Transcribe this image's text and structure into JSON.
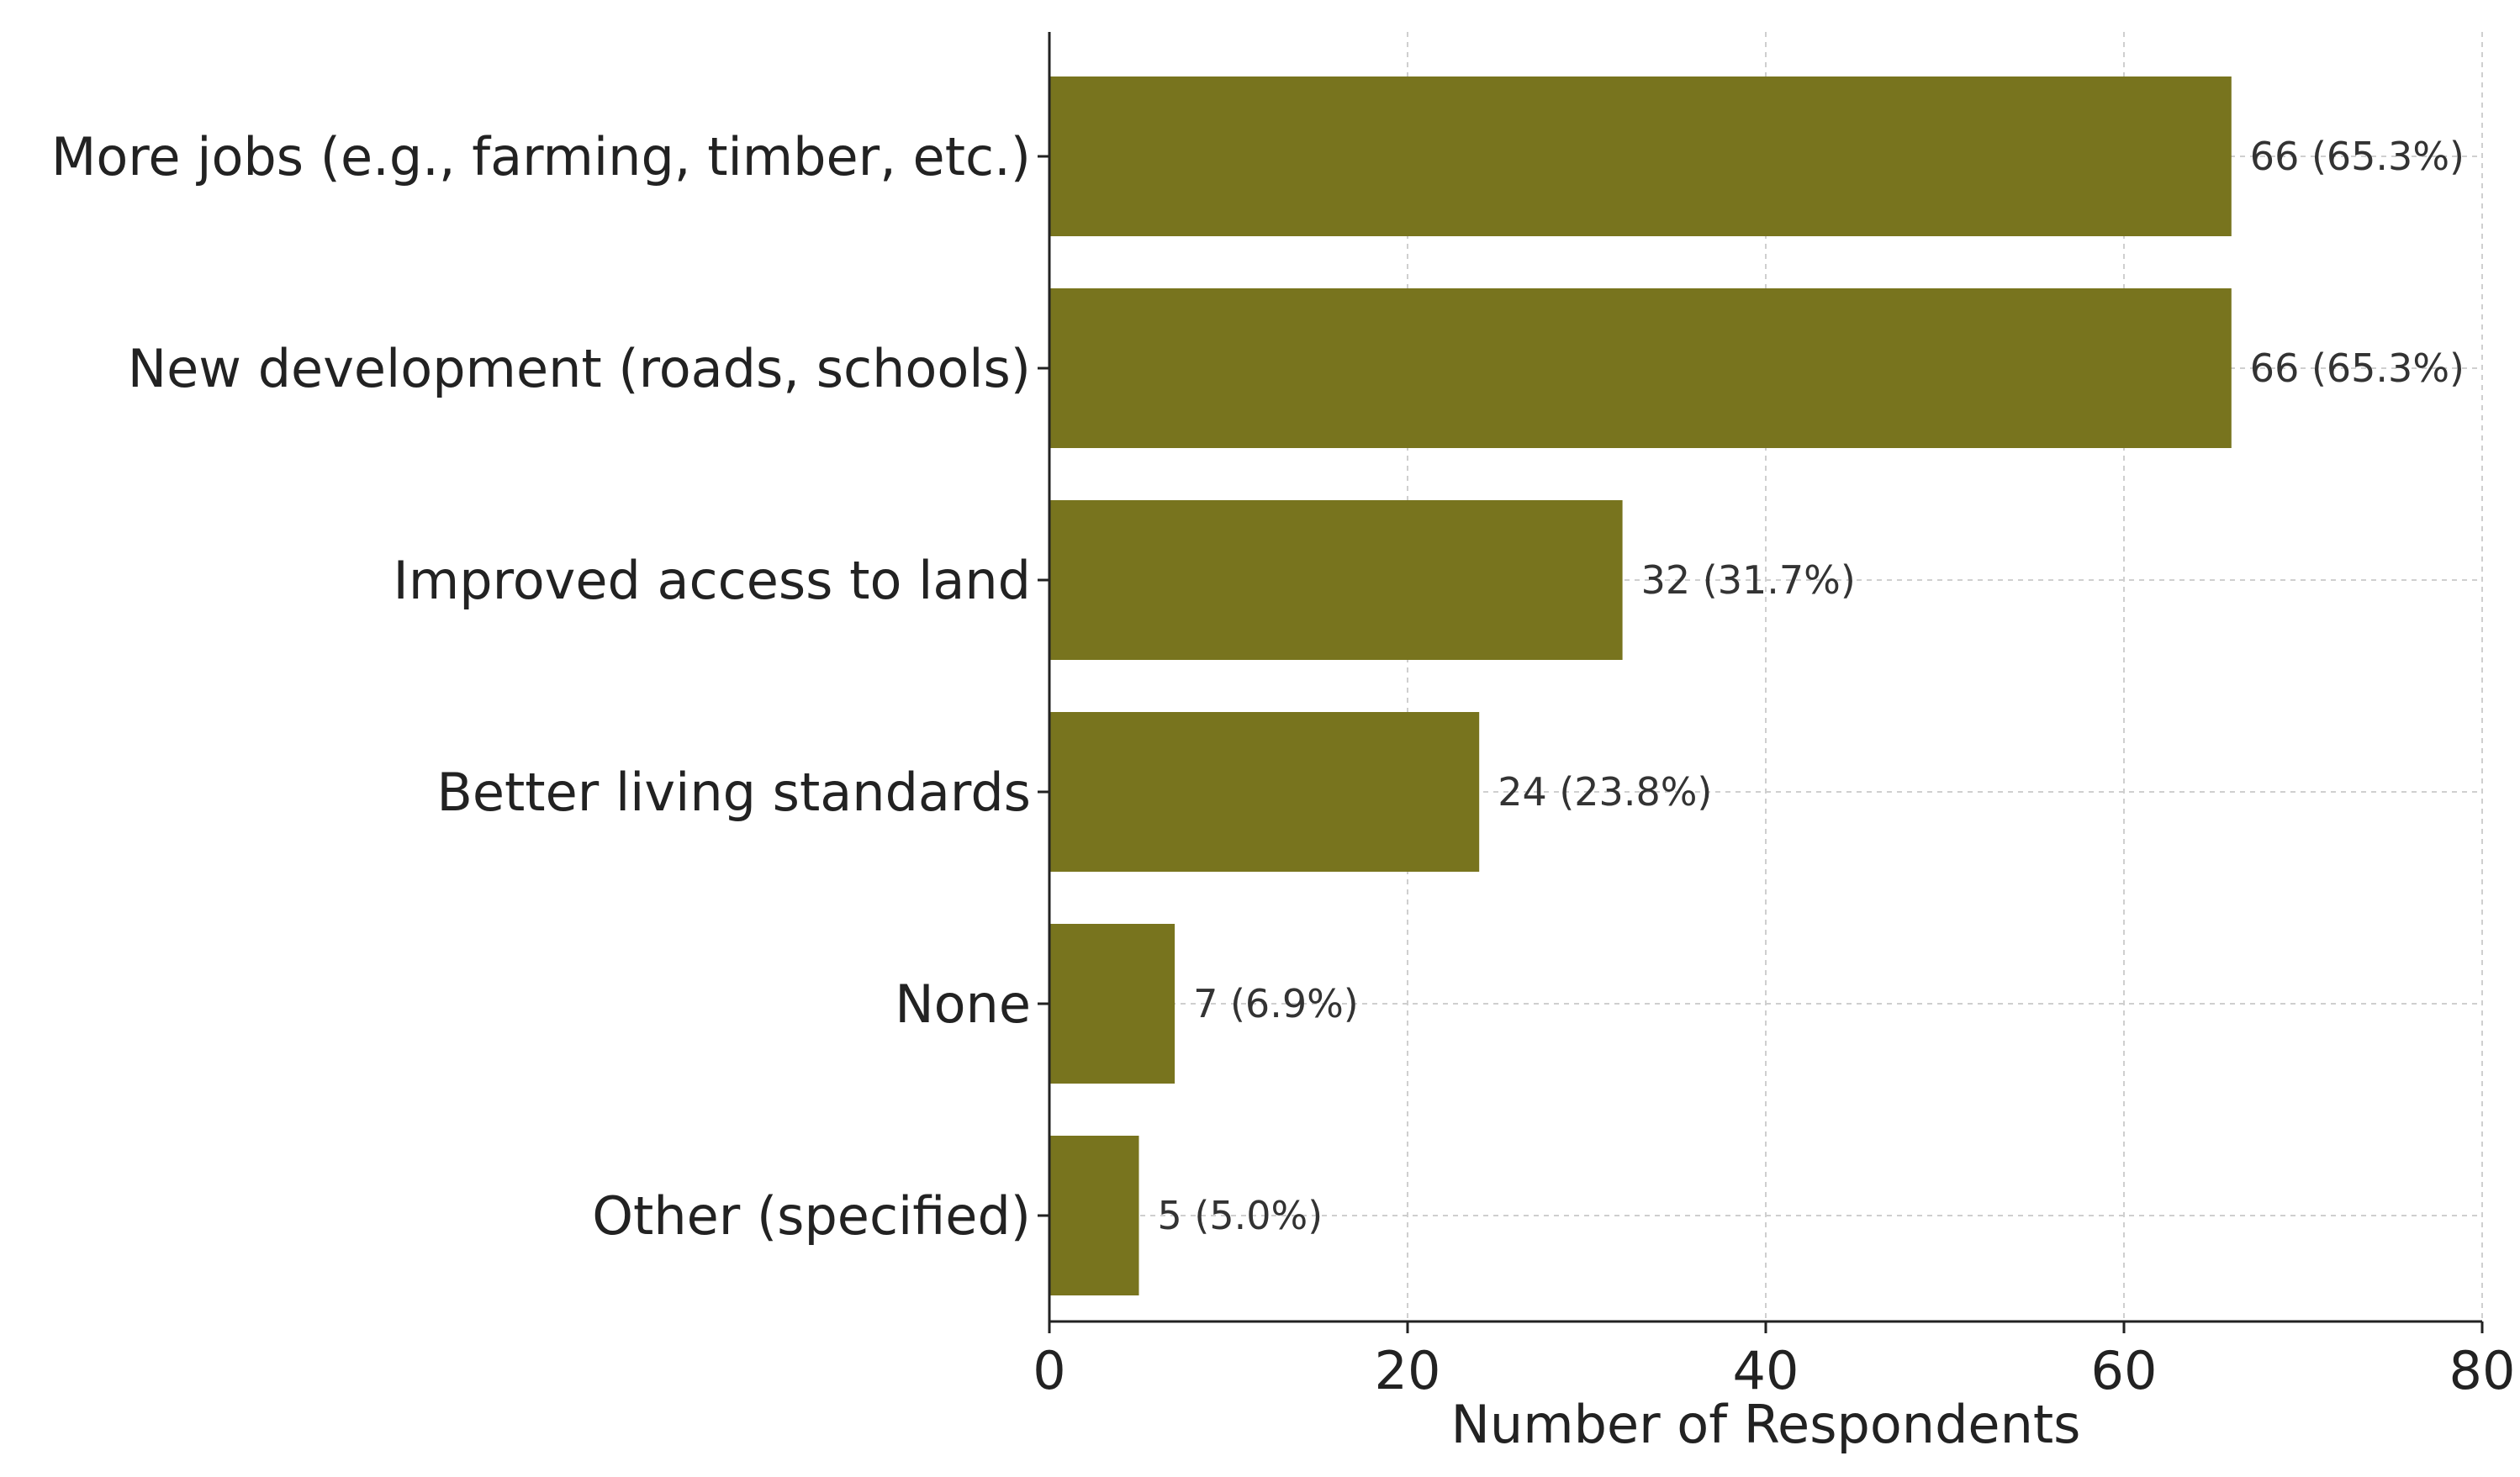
{
  "chart_data": {
    "type": "bar",
    "orientation": "horizontal",
    "categories": [
      "More jobs (e.g., farming, timber, etc.)",
      "New development (roads, schools)",
      "Improved access to land",
      "Better living standards",
      "None",
      "Other (specified)"
    ],
    "values": [
      66,
      66,
      32,
      24,
      7,
      5
    ],
    "value_labels": [
      "66 (65.3%)",
      "66 (65.3%)",
      "32 (31.7%)",
      "24 (23.8%)",
      "7 (6.9%)",
      "5 (5.0%)"
    ],
    "title": "",
    "xlabel": "Number of Respondents",
    "ylabel": "",
    "xlim": [
      0,
      80
    ],
    "xticks": [
      0,
      20,
      40,
      60,
      80
    ],
    "xtick_labels": [
      "0",
      "20",
      "40",
      "60",
      "80"
    ],
    "grid": true,
    "bar_color": "#78741e"
  }
}
